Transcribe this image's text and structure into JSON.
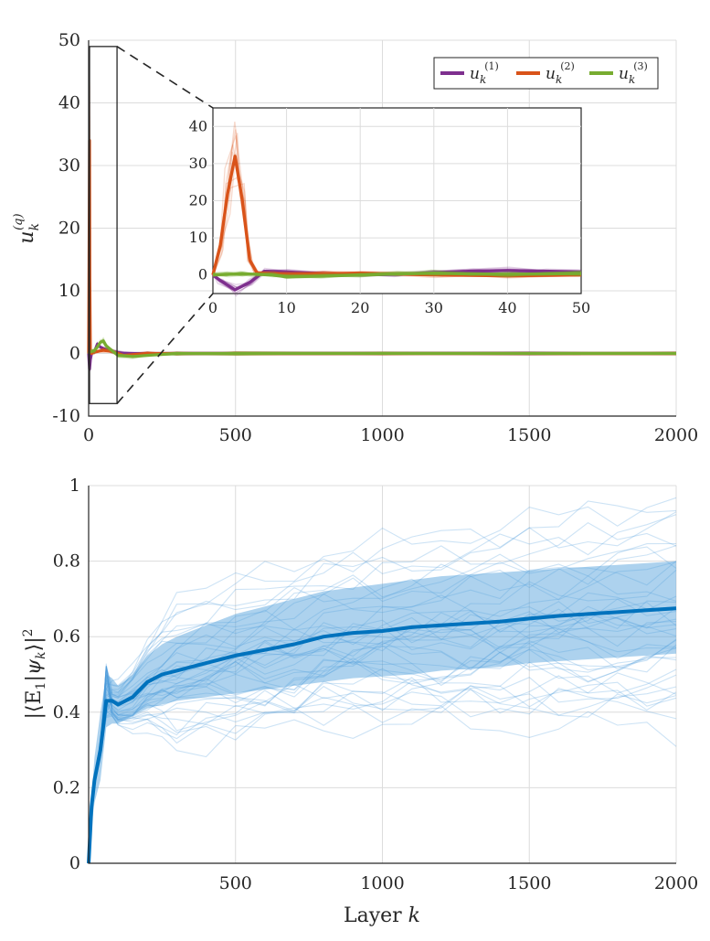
{
  "colors": {
    "purple": "#7E2F8E",
    "orange": "#D95319",
    "green": "#77AC30",
    "blue": "#0072BD",
    "band": "#4A9BDA"
  },
  "chart_data": [
    {
      "type": "line",
      "title": "",
      "xlabel": "",
      "ylabel": "u_k^(q)",
      "ylabel_base": "u",
      "ylabel_sub": "k",
      "ylabel_sup": "(q)",
      "xlim": [
        0,
        2000
      ],
      "ylim": [
        -10,
        50
      ],
      "xticks": [
        0,
        500,
        1000,
        1500,
        2000
      ],
      "yticks": [
        -10,
        0,
        10,
        20,
        30,
        40,
        50
      ],
      "xtick_labels": [
        "0",
        "500",
        "1000",
        "1500",
        "2000"
      ],
      "ytick_labels": [
        "-10",
        "0",
        "10",
        "20",
        "30",
        "40",
        "50"
      ],
      "grid": true,
      "legend": {
        "position": "top-right",
        "entries": [
          {
            "base": "u",
            "sub": "k",
            "sup": "(1)",
            "color_key": "purple"
          },
          {
            "base": "u",
            "sub": "k",
            "sup": "(2)",
            "color_key": "orange"
          },
          {
            "base": "u",
            "sub": "k",
            "sup": "(3)",
            "color_key": "green"
          }
        ]
      },
      "series": [
        {
          "name": "u_k^(1)",
          "color_key": "purple",
          "x": [
            0,
            3,
            6,
            10,
            20,
            30,
            40,
            50,
            80,
            120,
            200,
            300,
            500,
            1000,
            1500,
            2000
          ],
          "y": [
            0,
            -2.5,
            -1.0,
            0,
            0.3,
            1.5,
            1.0,
            0.8,
            0.3,
            0,
            0,
            0,
            0,
            0,
            0,
            0
          ]
        },
        {
          "name": "u_k^(2)",
          "color_key": "orange",
          "x": [
            0,
            2,
            3,
            4,
            6,
            10,
            20,
            30,
            50,
            80,
            120,
            200,
            300,
            500,
            1000,
            2000
          ],
          "y": [
            0,
            20,
            34,
            12,
            0.5,
            0,
            0.2,
            0.3,
            0.5,
            0.3,
            -0.3,
            0,
            0,
            0,
            0,
            0
          ]
        },
        {
          "name": "u_k^(3)",
          "color_key": "green",
          "x": [
            0,
            3,
            6,
            10,
            20,
            30,
            40,
            50,
            60,
            100,
            150,
            200,
            300,
            500,
            1000,
            2000
          ],
          "y": [
            0,
            0.2,
            0.3,
            0.3,
            0.5,
            1.0,
            1.8,
            2.0,
            1.2,
            -0.3,
            -0.5,
            -0.3,
            0,
            0,
            0,
            0
          ]
        }
      ],
      "inset": {
        "xlim": [
          0,
          50
        ],
        "ylim": [
          -5,
          45
        ],
        "xticks": [
          0,
          10,
          20,
          30,
          40,
          50
        ],
        "yticks": [
          0,
          10,
          20,
          30,
          40
        ],
        "xtick_labels": [
          "0",
          "10",
          "20",
          "30",
          "40",
          "50"
        ],
        "ytick_labels": [
          "0",
          "10",
          "20",
          "30",
          "40"
        ],
        "zoom_box": {
          "x": [
            0,
            50
          ],
          "y": [
            -8,
            49
          ]
        },
        "series": [
          {
            "name": "u_k^(1)",
            "color_key": "purple",
            "x": [
              0,
              1,
              3,
              5,
              7,
              10,
              15,
              20,
              25,
              30,
              35,
              40,
              45,
              50
            ],
            "y": [
              0,
              -1.5,
              -4.0,
              -2.0,
              1.0,
              0.8,
              0.3,
              0,
              0.2,
              0.6,
              1.0,
              1.2,
              1.0,
              0.8
            ]
          },
          {
            "name": "u_k^(2)",
            "color_key": "orange",
            "x": [
              0,
              1,
              2,
              3,
              4,
              5,
              6,
              8,
              10,
              15,
              20,
              30,
              40,
              50
            ],
            "y": [
              0,
              8,
              22,
              32,
              20,
              4,
              0.5,
              0.3,
              0.2,
              0.3,
              0.5,
              0,
              -0.2,
              0
            ]
          },
          {
            "name": "u_k^(3)",
            "color_key": "green",
            "x": [
              0,
              2,
              4,
              6,
              8,
              10,
              15,
              20,
              25,
              30,
              35,
              40,
              45,
              50
            ],
            "y": [
              0,
              0.2,
              0.3,
              0.2,
              0,
              -0.5,
              -0.3,
              0,
              0.3,
              0.5,
              0.3,
              0.2,
              0.3,
              0.4
            ]
          }
        ]
      }
    },
    {
      "type": "line",
      "title": "",
      "xlabel": "Layer k",
      "xlabel_text": "Layer ",
      "xlabel_var": "k",
      "ylabel": "|⟨E_1|ψ_k⟩|^2",
      "ylabel_text": "|⟨E",
      "ylabel_sub": "1",
      "ylabel_mid": "|ψ",
      "ylabel_sub2": "k",
      "ylabel_end": "⟩|",
      "ylabel_sup": "2",
      "xlim": [
        0,
        2000
      ],
      "ylim": [
        0,
        1
      ],
      "xticks": [
        500,
        1000,
        1500,
        2000
      ],
      "yticks": [
        0,
        0.2,
        0.4,
        0.6,
        0.8,
        1
      ],
      "xtick_labels": [
        "500",
        "1000",
        "1500",
        "2000"
      ],
      "ytick_labels": [
        "0",
        "0.2",
        "0.4",
        "0.6",
        "0.8",
        "1"
      ],
      "grid": true,
      "mean": {
        "x": [
          0,
          10,
          20,
          40,
          60,
          80,
          100,
          150,
          200,
          250,
          300,
          400,
          500,
          600,
          700,
          800,
          900,
          1000,
          1100,
          1200,
          1300,
          1400,
          1500,
          1600,
          1700,
          1800,
          1900,
          2000
        ],
        "y": [
          0,
          0.15,
          0.22,
          0.3,
          0.43,
          0.43,
          0.42,
          0.44,
          0.48,
          0.5,
          0.51,
          0.53,
          0.55,
          0.565,
          0.58,
          0.6,
          0.61,
          0.615,
          0.625,
          0.63,
          0.635,
          0.64,
          0.648,
          0.655,
          0.66,
          0.665,
          0.67,
          0.675
        ]
      },
      "band_upper": [
        0,
        0.18,
        0.28,
        0.4,
        0.5,
        0.49,
        0.47,
        0.5,
        0.55,
        0.58,
        0.6,
        0.63,
        0.66,
        0.68,
        0.7,
        0.72,
        0.73,
        0.74,
        0.75,
        0.76,
        0.765,
        0.77,
        0.775,
        0.78,
        0.785,
        0.79,
        0.795,
        0.8
      ],
      "band_lower": [
        0,
        0.1,
        0.16,
        0.22,
        0.36,
        0.37,
        0.37,
        0.39,
        0.41,
        0.42,
        0.43,
        0.44,
        0.45,
        0.46,
        0.47,
        0.48,
        0.49,
        0.495,
        0.5,
        0.51,
        0.515,
        0.52,
        0.53,
        0.535,
        0.54,
        0.545,
        0.55,
        0.555
      ]
    }
  ]
}
